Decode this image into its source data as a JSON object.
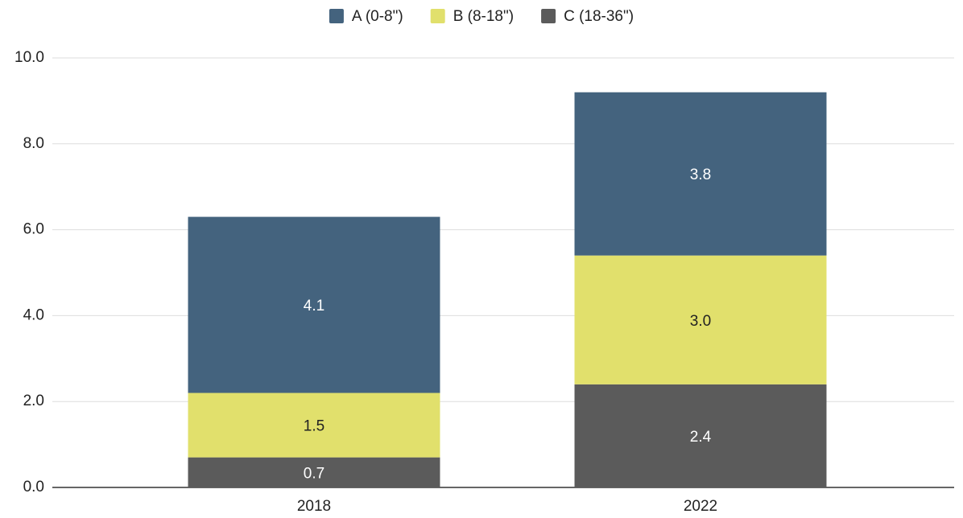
{
  "chart_data": {
    "type": "stacked_bar",
    "categories": [
      "2018",
      "2022"
    ],
    "series": [
      {
        "name": "A (0-8\")",
        "color": "#44637e",
        "values": [
          4.1,
          3.8
        ],
        "value_labels": [
          "4.1",
          "3.8"
        ]
      },
      {
        "name": "B (8-18\")",
        "color": "#e1e06c",
        "values": [
          1.5,
          3.0
        ],
        "value_labels": [
          "1.5",
          "3.0"
        ]
      },
      {
        "name": "C (18-36\")",
        "color": "#5b5b5b",
        "values": [
          0.7,
          2.4
        ],
        "value_labels": [
          "0.7",
          "2.4"
        ]
      }
    ],
    "ylim": [
      0,
      10
    ],
    "yticks": [
      {
        "value": 0,
        "label": "0.0"
      },
      {
        "value": 2,
        "label": "2.0"
      },
      {
        "value": 4,
        "label": "4.0"
      },
      {
        "value": 6,
        "label": "6.0"
      },
      {
        "value": 8,
        "label": "8.0"
      },
      {
        "value": 10,
        "label": "10.0"
      }
    ],
    "grid": true,
    "legend": "top"
  }
}
